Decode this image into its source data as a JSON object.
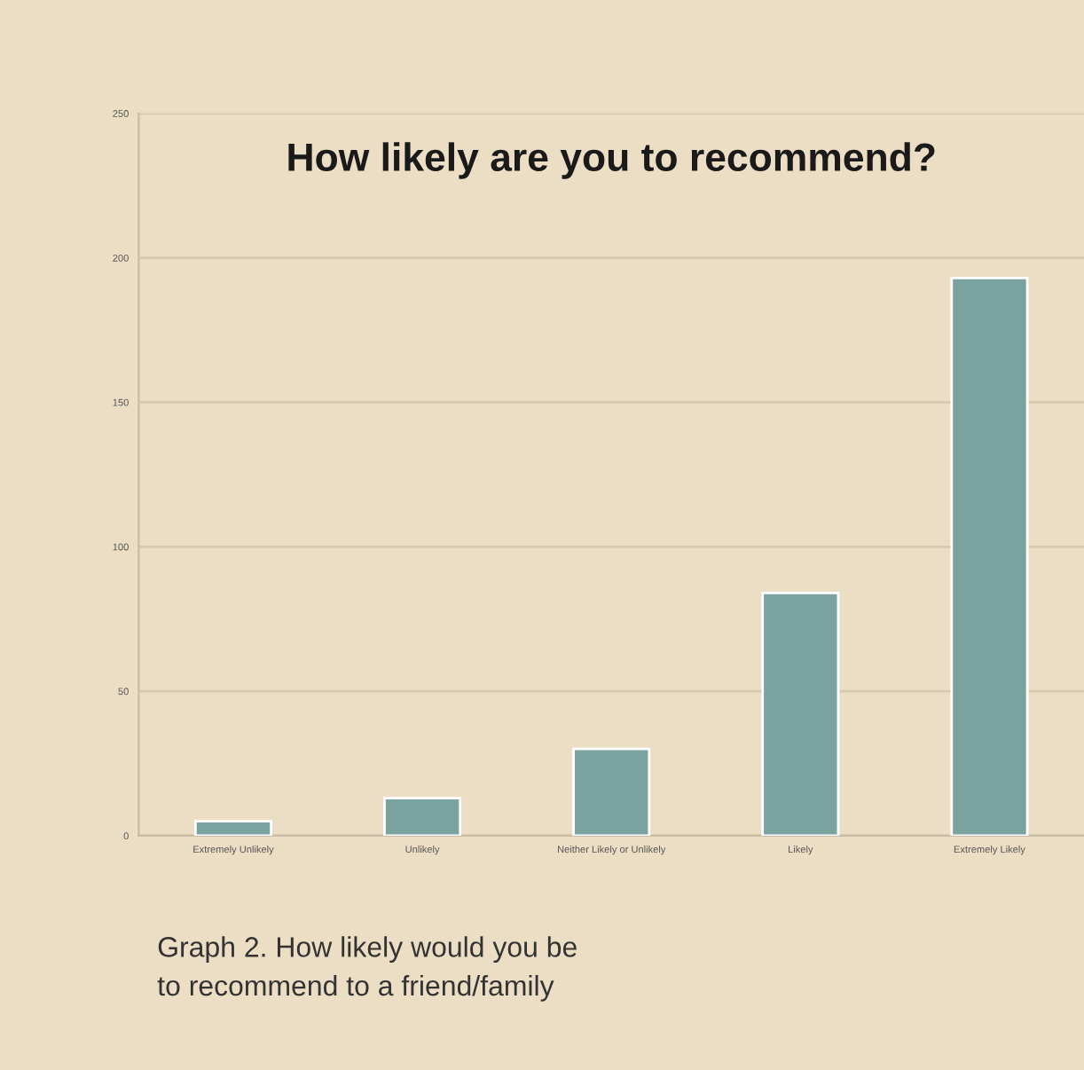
{
  "chart_data": {
    "type": "bar",
    "title": "How likely are you to recommend?",
    "categories": [
      "Extremely Unlikely",
      "Unlikely",
      "Neither Likely or Unlikely",
      "Likely",
      "Extremely Likely"
    ],
    "values": [
      5,
      13,
      30,
      84,
      193
    ],
    "color": "#7aa3a0",
    "ylim": [
      0,
      250
    ],
    "yticks": [
      0,
      50,
      100,
      150,
      200,
      250
    ],
    "grid": "y",
    "legend": false,
    "annotations": [
      "Graph 2. How likely would you be\nto recommend to a friend/family"
    ]
  }
}
